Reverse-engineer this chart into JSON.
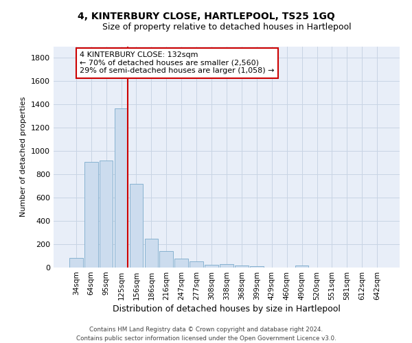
{
  "title": "4, KINTERBURY CLOSE, HARTLEPOOL, TS25 1GQ",
  "subtitle": "Size of property relative to detached houses in Hartlepool",
  "xlabel": "Distribution of detached houses by size in Hartlepool",
  "ylabel": "Number of detached properties",
  "footer_line1": "Contains HM Land Registry data © Crown copyright and database right 2024.",
  "footer_line2": "Contains public sector information licensed under the Open Government Licence v3.0.",
  "bar_labels": [
    "34sqm",
    "64sqm",
    "95sqm",
    "125sqm",
    "156sqm",
    "186sqm",
    "216sqm",
    "247sqm",
    "277sqm",
    "308sqm",
    "338sqm",
    "368sqm",
    "399sqm",
    "429sqm",
    "460sqm",
    "490sqm",
    "520sqm",
    "551sqm",
    "581sqm",
    "612sqm",
    "642sqm"
  ],
  "bar_values": [
    80,
    910,
    920,
    1365,
    720,
    250,
    140,
    75,
    52,
    25,
    30,
    17,
    10,
    0,
    0,
    20,
    0,
    0,
    0,
    0,
    0
  ],
  "bar_color": "#ccdcee",
  "bar_edge_color": "#7aaacb",
  "vline_color": "#cc0000",
  "annotation_title": "4 KINTERBURY CLOSE: 132sqm",
  "annotation_line1": "← 70% of detached houses are smaller (2,560)",
  "annotation_line2": "29% of semi-detached houses are larger (1,058) →",
  "annotation_box_edgecolor": "#cc0000",
  "ylim": [
    0,
    1900
  ],
  "yticks": [
    0,
    200,
    400,
    600,
    800,
    1000,
    1200,
    1400,
    1600,
    1800
  ],
  "grid_color": "#c8d4e4",
  "background_color": "#e8eef8",
  "title_fontsize": 10,
  "subtitle_fontsize": 9,
  "xlabel_fontsize": 9,
  "ylabel_fontsize": 8
}
